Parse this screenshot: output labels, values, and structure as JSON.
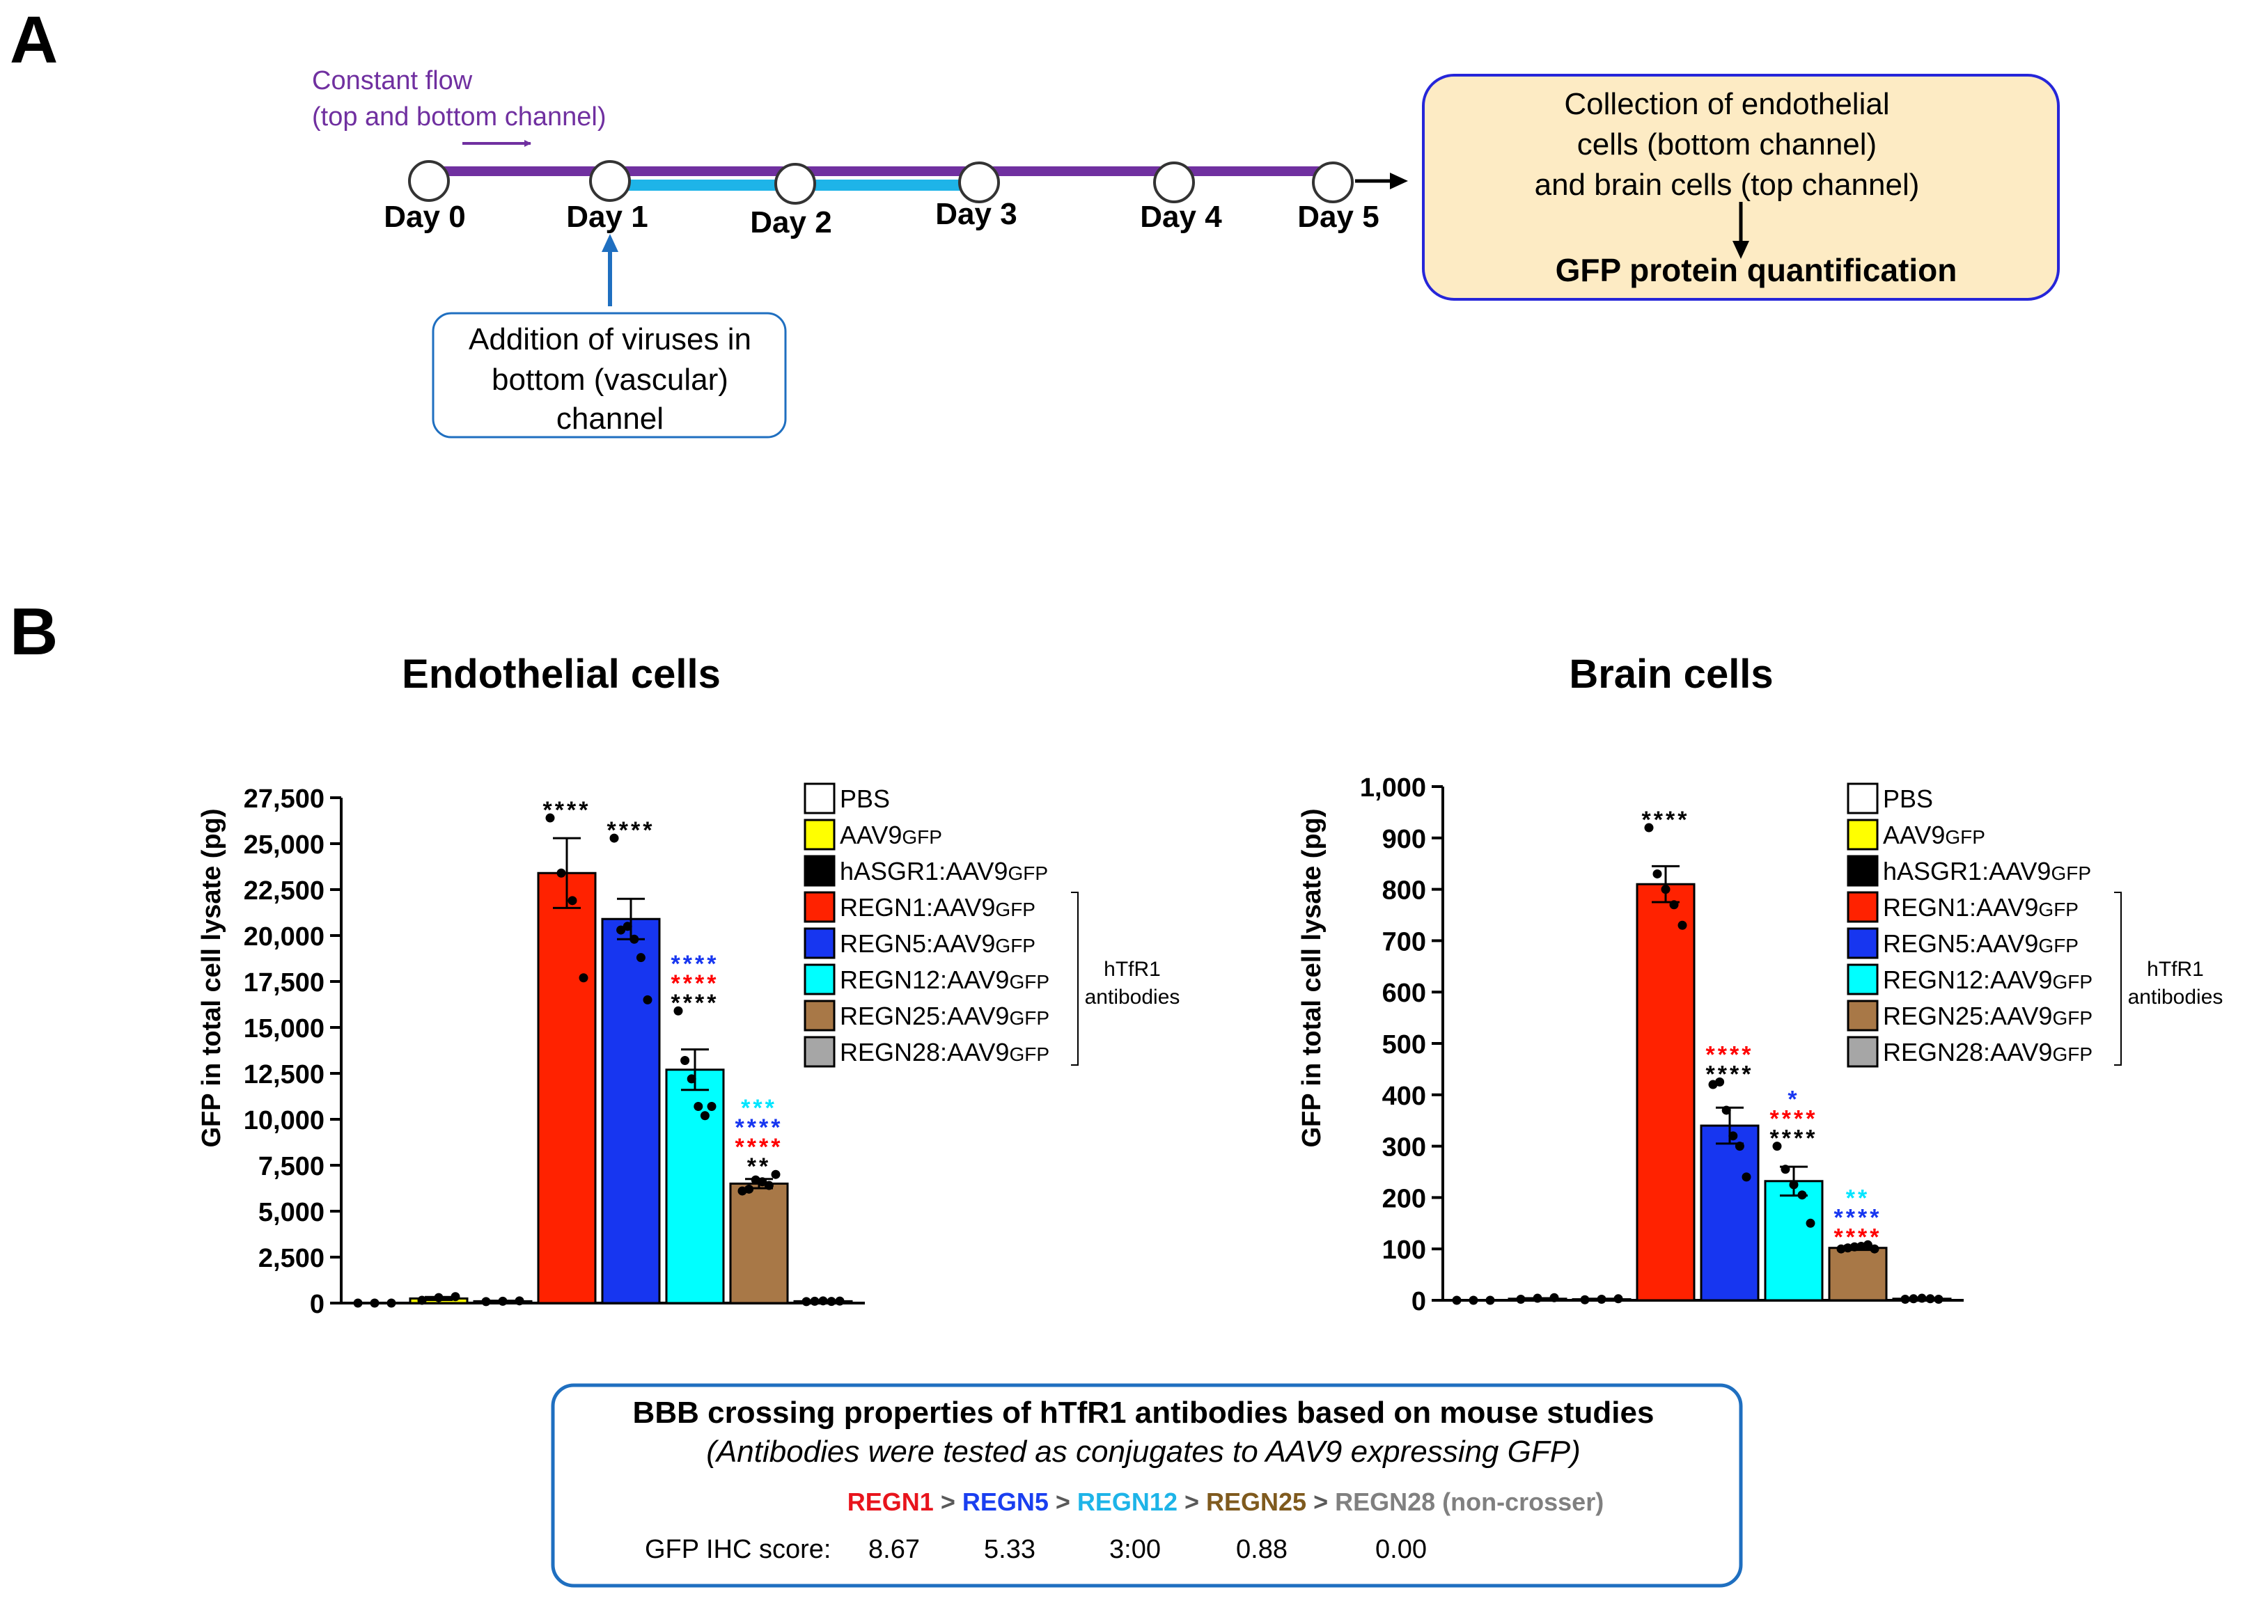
{
  "panel_a": {
    "label": "A",
    "flow_line1": "Constant flow",
    "flow_line2": "(top and bottom channel)",
    "days": [
      "Day 0",
      "Day 1",
      "Day 2",
      "Day 3",
      "Day 4",
      "Day 5"
    ],
    "virus_box": [
      "Addition of viruses in",
      "bottom (vascular)",
      "channel"
    ],
    "collection_box": [
      "Collection of endothelial",
      "cells (bottom channel)",
      "and brain cells (top channel)"
    ],
    "quantification": "GFP protein quantification",
    "colors": {
      "purple": "#7030a0",
      "cyan": "#1eb4e8",
      "blue": "#1f6fc0",
      "box_fill": "#fdebc4",
      "box_border": "#2626d9"
    }
  },
  "panel_b": {
    "label": "B",
    "ylabel": "GFP in total cell lysate (pg)",
    "legend_group_label": [
      "hTfR1",
      "antibodies"
    ],
    "legend": [
      {
        "label": "PBS",
        "sub": "",
        "color": "#ffffff"
      },
      {
        "label": "AAV9",
        "sub": "GFP",
        "color": "#ffff00"
      },
      {
        "label": "hASGR1:AAV9",
        "sub": "GFP",
        "color": "#000000"
      },
      {
        "label": "REGN1:AAV9",
        "sub": "GFP",
        "color": "#ff2200"
      },
      {
        "label": "REGN5:AAV9",
        "sub": "GFP",
        "color": "#1736f0"
      },
      {
        "label": "REGN12:AAV9",
        "sub": "GFP",
        "color": "#00ffff"
      },
      {
        "label": "REGN25:AAV9",
        "sub": "GFP",
        "color": "#a87847"
      },
      {
        "label": "REGN28:AAV9",
        "sub": "GFP",
        "color": "#a6a6a6"
      }
    ]
  },
  "chart_data": [
    {
      "type": "bar",
      "title": "Endothelial cells",
      "ylabel": "GFP in total cell lysate (pg)",
      "categories": [
        "PBS",
        "AAV9GFP",
        "hASGR1:AAV9GFP",
        "REGN1:AAV9GFP",
        "REGN5:AAV9GFP",
        "REGN12:AAV9GFP",
        "REGN25:AAV9GFP",
        "REGN28:AAV9GFP"
      ],
      "values": [
        0,
        250,
        100,
        23400,
        20900,
        12700,
        6500,
        100
      ],
      "errors": [
        0,
        80,
        30,
        1900,
        1100,
        1100,
        250,
        30
      ],
      "points": [
        [
          0,
          0,
          0
        ],
        [
          150,
          300,
          350
        ],
        [
          80,
          100,
          120
        ],
        [
          26400,
          23400,
          21900,
          17700
        ],
        [
          25300,
          20300,
          20500,
          19800,
          18800,
          16500
        ],
        [
          15900,
          13200,
          12200,
          10700,
          10200,
          10700
        ],
        [
          6100,
          6200,
          6700,
          6600,
          6400,
          7000
        ],
        [
          80,
          100,
          120,
          90,
          110
        ]
      ],
      "ylim": [
        0,
        27500
      ],
      "yticks": [
        0,
        2500,
        5000,
        7500,
        10000,
        12500,
        15000,
        17500,
        20000,
        22500,
        25000,
        27500
      ],
      "ytick_labels": [
        "0",
        "2,500",
        "5,000",
        "7,500",
        "10,000",
        "12,500",
        "15,000",
        "17,500",
        "20,000",
        "22,500",
        "25,000",
        "27,500"
      ],
      "significance": [
        [],
        [],
        [],
        [
          {
            "text": "****",
            "color": "#000000"
          }
        ],
        [
          {
            "text": "****",
            "color": "#000000"
          }
        ],
        [
          {
            "text": "****",
            "color": "#1736f0"
          },
          {
            "text": "****",
            "color": "#ff0000"
          },
          {
            "text": "****",
            "color": "#000000"
          }
        ],
        [
          {
            "text": "***",
            "color": "#00e5ff"
          },
          {
            "text": "****",
            "color": "#1736f0"
          },
          {
            "text": "****",
            "color": "#ff0000"
          },
          {
            "text": "**",
            "color": "#000000"
          }
        ],
        []
      ]
    },
    {
      "type": "bar",
      "title": "Brain cells",
      "ylabel": "GFP in total cell lysate (pg)",
      "categories": [
        "PBS",
        "AAV9GFP",
        "hASGR1:AAV9GFP",
        "REGN1:AAV9GFP",
        "REGN5:AAV9GFP",
        "REGN12:AAV9GFP",
        "REGN25:AAV9GFP",
        "REGN28:AAV9GFP"
      ],
      "values": [
        0,
        3,
        2,
        810,
        340,
        232,
        102,
        3
      ],
      "errors": [
        0,
        1,
        1,
        35,
        35,
        28,
        4,
        1
      ],
      "points": [
        [
          0,
          0,
          0
        ],
        [
          2,
          4,
          5
        ],
        [
          1,
          2,
          3
        ],
        [
          920,
          830,
          800,
          770,
          730
        ],
        [
          420,
          425,
          370,
          320,
          300,
          240
        ],
        [
          300,
          255,
          225,
          205,
          150
        ],
        [
          100,
          102,
          104,
          105,
          108,
          100
        ],
        [
          2,
          3,
          4,
          3,
          2
        ]
      ],
      "ylim": [
        0,
        1000
      ],
      "yticks": [
        0,
        100,
        200,
        300,
        400,
        500,
        600,
        700,
        800,
        900,
        1000
      ],
      "ytick_labels": [
        "0",
        "100",
        "200",
        "300",
        "400",
        "500",
        "600",
        "700",
        "800",
        "900",
        "1,000"
      ],
      "significance": [
        [],
        [],
        [],
        [
          {
            "text": "****",
            "color": "#000000"
          }
        ],
        [
          {
            "text": "****",
            "color": "#ff0000"
          },
          {
            "text": "****",
            "color": "#000000"
          }
        ],
        [
          {
            "text": "*",
            "color": "#1736f0"
          },
          {
            "text": "****",
            "color": "#ff0000"
          },
          {
            "text": "****",
            "color": "#000000"
          }
        ],
        [
          {
            "text": "**",
            "color": "#00e5ff"
          },
          {
            "text": "****",
            "color": "#1736f0"
          },
          {
            "text": "****",
            "color": "#ff0000"
          }
        ],
        []
      ]
    }
  ],
  "bbb_box": {
    "title": "BBB crossing properties of hTfR1 antibodies based on mouse studies",
    "subtitle": "(Antibodies were tested as conjugates to AAV9 expressing GFP)",
    "ranking": [
      {
        "text": "REGN1",
        "color": "#e8141c"
      },
      {
        "text": " > ",
        "color": "#595959"
      },
      {
        "text": "REGN5",
        "color": "#1a3ff0"
      },
      {
        "text": " > ",
        "color": "#595959"
      },
      {
        "text": "REGN12",
        "color": "#1eb4e8"
      },
      {
        "text": " > ",
        "color": "#595959"
      },
      {
        "text": "REGN25",
        "color": "#7f5a1e"
      },
      {
        "text": " > ",
        "color": "#595959"
      },
      {
        "text": "REGN28 (non-crosser)",
        "color": "#808080"
      }
    ],
    "score_label": "GFP IHC score:",
    "scores": [
      "8.67",
      "5.33",
      "3:00",
      "0.88",
      "0.00"
    ]
  }
}
